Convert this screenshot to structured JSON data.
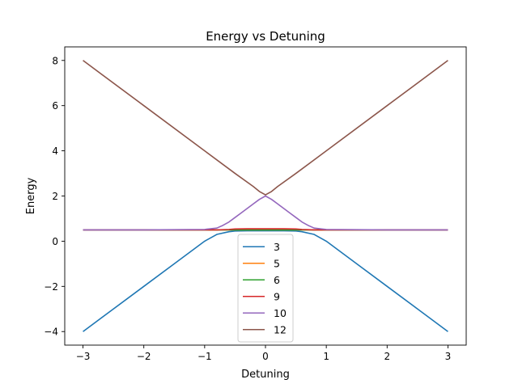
{
  "chart_data": {
    "type": "line",
    "title": "Energy vs Detuning",
    "xlabel": "Detuning",
    "ylabel": "Energy",
    "xlim": [
      -3.3,
      3.3
    ],
    "ylim": [
      -4.6,
      8.6
    ],
    "xticks": [
      -3,
      -2,
      -1,
      0,
      1,
      2,
      3
    ],
    "xtick_labels": [
      "−3",
      "−2",
      "−1",
      "0",
      "1",
      "2",
      "3"
    ],
    "yticks": [
      -4,
      -2,
      0,
      2,
      4,
      6,
      8
    ],
    "ytick_labels": [
      "−4",
      "−2",
      "0",
      "2",
      "4",
      "6",
      "8"
    ],
    "grid": false,
    "legend_position": "lower-center",
    "series": [
      {
        "name": "3",
        "color": "#1f77b4",
        "x": [
          -3,
          -2.5,
          -2,
          -1.5,
          -1,
          -0.8,
          -0.6,
          -0.5,
          -0.3,
          0,
          0.3,
          0.5,
          0.6,
          0.8,
          1,
          1.5,
          2,
          2.5,
          3
        ],
        "y": [
          -4,
          -3,
          -2,
          -1,
          0,
          0.3,
          0.42,
          0.45,
          0.46,
          0.46,
          0.46,
          0.45,
          0.42,
          0.3,
          0,
          -1,
          -2,
          -3,
          -4
        ]
      },
      {
        "name": "5",
        "color": "#ff7f0e",
        "x": [
          -3,
          -2,
          -1,
          -0.8,
          -0.6,
          -0.4,
          0,
          0.4,
          0.6,
          0.8,
          1,
          2,
          3
        ],
        "y": [
          0.5,
          0.5,
          0.5,
          0.5,
          0.5,
          0.5,
          0.5,
          0.5,
          0.5,
          0.5,
          0.5,
          0.5,
          0.5
        ]
      },
      {
        "name": "6",
        "color": "#2ca02c",
        "x": [
          -3,
          -2,
          -1,
          -0.8,
          -0.6,
          -0.4,
          0,
          0.4,
          0.6,
          0.8,
          1,
          2,
          3
        ],
        "y": [
          0.5,
          0.5,
          0.5,
          0.5,
          0.5,
          0.5,
          0.5,
          0.5,
          0.5,
          0.5,
          0.5,
          0.5,
          0.5
        ]
      },
      {
        "name": "9",
        "color": "#d62728",
        "x": [
          -3,
          -2,
          -1,
          -0.8,
          -0.6,
          -0.5,
          -0.3,
          0,
          0.3,
          0.5,
          0.6,
          0.8,
          1,
          2,
          3
        ],
        "y": [
          0.5,
          0.5,
          0.5,
          0.5,
          0.52,
          0.54,
          0.55,
          0.55,
          0.55,
          0.54,
          0.52,
          0.5,
          0.5,
          0.5,
          0.5
        ]
      },
      {
        "name": "10",
        "color": "#9467bd",
        "x": [
          -3,
          -2,
          -1,
          -0.8,
          -0.7,
          -0.6,
          -0.5,
          -0.4,
          -0.3,
          -0.2,
          -0.1,
          0,
          0.1,
          0.2,
          0.3,
          0.4,
          0.5,
          0.6,
          0.7,
          0.8,
          1,
          2,
          3
        ],
        "y": [
          0.5,
          0.5,
          0.52,
          0.58,
          0.7,
          0.85,
          1.05,
          1.25,
          1.45,
          1.65,
          1.85,
          2.0,
          1.85,
          1.65,
          1.45,
          1.25,
          1.05,
          0.85,
          0.7,
          0.58,
          0.52,
          0.5,
          0.5
        ]
      },
      {
        "name": "12",
        "color": "#8c564b",
        "x": [
          -3,
          -2,
          -1,
          -0.5,
          -0.2,
          -0.1,
          0,
          0.1,
          0.2,
          0.5,
          1,
          2,
          3
        ],
        "y": [
          8,
          6,
          4,
          3,
          2.42,
          2.2,
          2.05,
          2.2,
          2.42,
          3,
          4,
          6,
          8
        ]
      }
    ]
  }
}
